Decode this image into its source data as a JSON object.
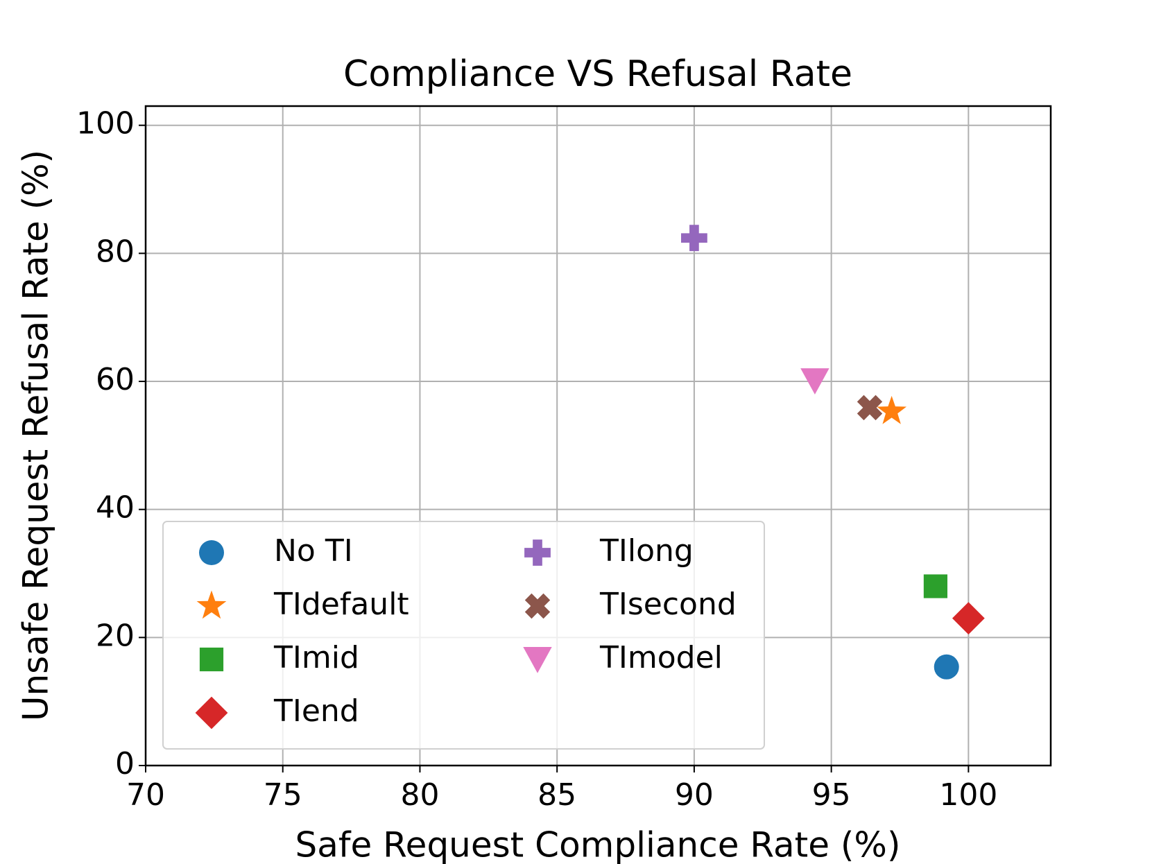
{
  "chart_data": {
    "type": "scatter",
    "title": "Compliance VS Refusal Rate",
    "x_label": "Safe Request Compliance Rate (%)",
    "y_label": "Unsafe Request Refusal Rate (%)",
    "xlim": [
      70,
      103
    ],
    "ylim": [
      0,
      103
    ],
    "xticks": [
      70,
      75,
      80,
      85,
      90,
      95,
      100
    ],
    "yticks": [
      0,
      20,
      40,
      60,
      80,
      100
    ],
    "grid": true,
    "legend_loc": "lower left",
    "legend_columns": 2,
    "series": [
      {
        "name": "No TI",
        "color": "#1f77b4",
        "marker": "circle",
        "x": [
          99.2
        ],
        "y": [
          15.4
        ]
      },
      {
        "name": "TIdefault",
        "color": "#ff7f0e",
        "marker": "star",
        "x": [
          97.2
        ],
        "y": [
          55.3
        ]
      },
      {
        "name": "TImid",
        "color": "#2ca02c",
        "marker": "square",
        "x": [
          98.8
        ],
        "y": [
          28.0
        ]
      },
      {
        "name": "TIend",
        "color": "#d62728",
        "marker": "diamond",
        "x": [
          100
        ],
        "y": [
          23.0
        ]
      },
      {
        "name": "TIlong",
        "color": "#9467bd",
        "marker": "plus",
        "x": [
          90
        ],
        "y": [
          82.4
        ]
      },
      {
        "name": "TIsecond",
        "color": "#8c564b",
        "marker": "cross",
        "x": [
          96.4
        ],
        "y": [
          55.9
        ]
      },
      {
        "name": "TImodel",
        "color": "#e377c2",
        "marker": "triangle-down",
        "x": [
          94.4
        ],
        "y": [
          60.1
        ]
      }
    ]
  }
}
